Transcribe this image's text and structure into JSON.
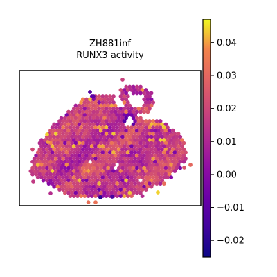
{
  "chart_data": {
    "type": "heatmap",
    "title": "ZH881inf",
    "subtitle": "RUNX3 activity",
    "xlabel": "",
    "ylabel": "",
    "grid": false,
    "legend": "colorbar-right",
    "colorbar": {
      "colormap": "plasma",
      "range": [
        -0.025,
        0.047
      ],
      "ticks": [
        -0.02,
        -0.01,
        0.0,
        0.01,
        0.02,
        0.03,
        0.04
      ],
      "tick_labels": [
        "−0.02",
        "−0.01",
        "0.00",
        "0.01",
        "0.02",
        "0.03",
        "0.04"
      ]
    },
    "values_summary": {
      "typical": 0.018,
      "min_visible": -0.022,
      "max_visible": 0.046
    }
  }
}
